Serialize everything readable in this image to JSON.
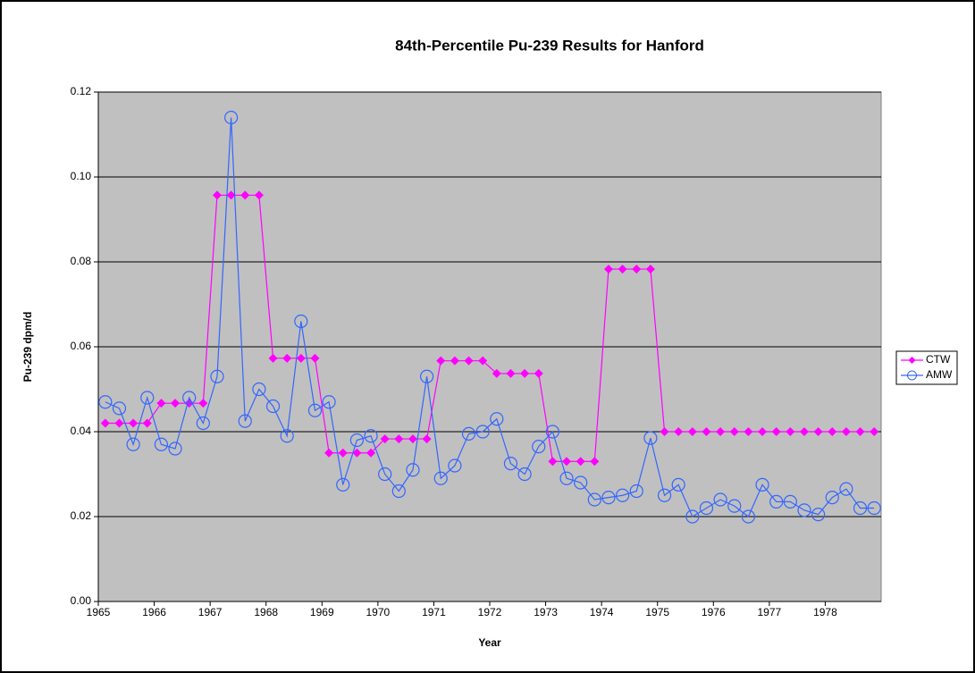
{
  "chart_data": {
    "type": "line",
    "title": "84th-Percentile Pu-239 Results for Hanford",
    "x_label": "Year",
    "y_label": "Pu-239 dpm/d",
    "categories": [
      "1965",
      null,
      null,
      null,
      "1966",
      null,
      null,
      null,
      "1967",
      null,
      null,
      null,
      "1968",
      null,
      null,
      null,
      "1969",
      null,
      null,
      null,
      "1970",
      null,
      null,
      null,
      "1971",
      null,
      null,
      null,
      "1972",
      null,
      null,
      null,
      "1973",
      null,
      null,
      null,
      "1974",
      null,
      null,
      null,
      "1975",
      null,
      null,
      null,
      "1976",
      null,
      null,
      null,
      "1977",
      null,
      null,
      null,
      "1978",
      null,
      null,
      null
    ],
    "series": [
      {
        "name": "CTW",
        "color": "#ff00ff",
        "marker": "diamond",
        "values": [
          0.042,
          0.042,
          0.042,
          0.042,
          0.0467,
          0.0467,
          0.0467,
          0.0467,
          0.0957,
          0.0957,
          0.0957,
          0.0957,
          0.0573,
          0.0573,
          0.0573,
          0.0573,
          0.035,
          0.035,
          0.035,
          0.035,
          0.0383,
          0.0383,
          0.0383,
          0.0383,
          0.0567,
          0.0567,
          0.0567,
          0.0567,
          0.0537,
          0.0537,
          0.0537,
          0.0537,
          0.033,
          0.033,
          0.033,
          0.033,
          0.0783,
          0.0783,
          0.0783,
          0.0783,
          0.04,
          0.04,
          0.04,
          0.04,
          0.04,
          0.04,
          0.04,
          0.04,
          0.04,
          0.04,
          0.04,
          0.04,
          0.04,
          0.04,
          0.04,
          0.04
        ]
      },
      {
        "name": "AMW",
        "color": "#3366ff",
        "marker": "circle",
        "values": [
          0.047,
          0.0455,
          0.037,
          0.048,
          0.037,
          0.036,
          0.048,
          0.042,
          0.053,
          0.114,
          0.0425,
          0.05,
          0.046,
          0.039,
          0.066,
          0.045,
          0.047,
          0.0275,
          0.038,
          0.039,
          0.03,
          0.026,
          0.031,
          0.053,
          0.029,
          0.032,
          0.0395,
          0.04,
          0.043,
          0.0325,
          0.03,
          0.0365,
          0.04,
          0.029,
          0.028,
          0.024,
          0.0245,
          0.025,
          0.026,
          0.0385,
          0.025,
          0.0275,
          0.02,
          0.022,
          0.024,
          0.0225,
          0.02,
          0.0275,
          0.0235,
          0.0235,
          0.0215,
          0.0205,
          0.0245,
          0.0265,
          0.022,
          0.022
        ]
      }
    ],
    "ylim": [
      0,
      0.12
    ],
    "yticks": [
      {
        "value": 0,
        "label": "0.00"
      },
      {
        "value": 0.02,
        "label": "0.02"
      },
      {
        "value": 0.04,
        "label": "0.04"
      },
      {
        "value": 0.06,
        "label": "0.06"
      },
      {
        "value": 0.08,
        "label": "0.08"
      },
      {
        "value": 0.1,
        "label": "0.10"
      },
      {
        "value": 0.12,
        "label": "0.12"
      }
    ],
    "grid": true,
    "legend": "right",
    "plot_background": "#c0c0c0"
  }
}
